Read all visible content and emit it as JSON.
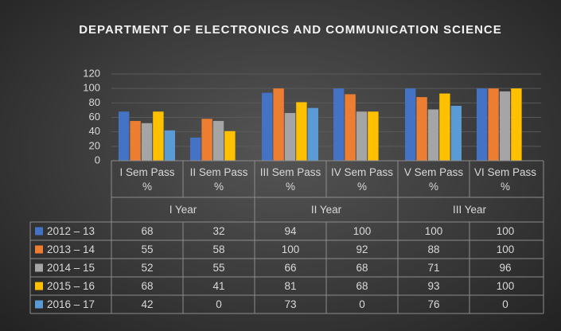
{
  "chart_data": {
    "type": "bar",
    "title": "DEPARTMENT OF ELECTRONICS AND COMMUNICATION SCIENCE",
    "categories": [
      "I Sem Pass %",
      "II Sem Pass %",
      "III Sem Pass %",
      "IV Sem Pass %",
      "V Sem Pass %",
      "VI Sem Pass %"
    ],
    "category_groups": [
      "I Year",
      "II Year",
      "III Year"
    ],
    "series": [
      {
        "name": "2012 – 13",
        "color": "#4472c4",
        "values": [
          68,
          32,
          94,
          100,
          100,
          100
        ]
      },
      {
        "name": "2013 – 14",
        "color": "#ed7d31",
        "values": [
          55,
          58,
          100,
          92,
          88,
          100
        ]
      },
      {
        "name": "2014 – 15",
        "color": "#a5a5a5",
        "values": [
          52,
          55,
          66,
          68,
          71,
          96
        ]
      },
      {
        "name": "2015 – 16",
        "color": "#ffc000",
        "values": [
          68,
          41,
          81,
          68,
          93,
          100
        ]
      },
      {
        "name": "2016 – 17",
        "color": "#5b9bd5",
        "values": [
          42,
          0,
          73,
          0,
          76,
          0
        ]
      }
    ],
    "ylim": [
      0,
      120
    ],
    "yticks": [
      0,
      20,
      40,
      60,
      80,
      100,
      120
    ],
    "grid": true
  }
}
